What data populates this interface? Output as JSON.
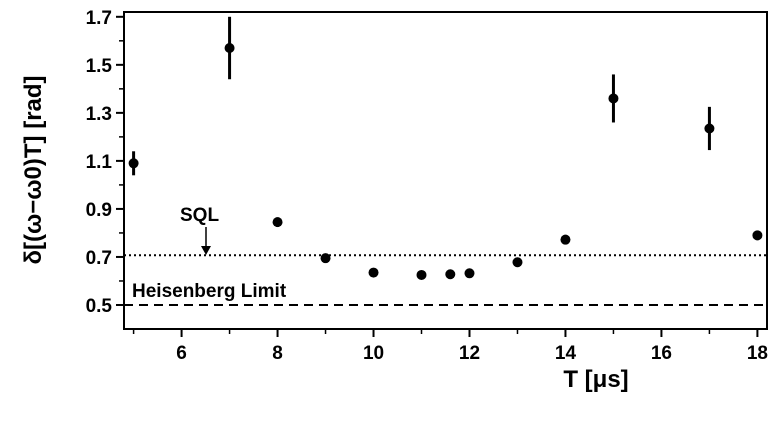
{
  "chart_data": {
    "type": "scatter",
    "xlabel": "T [μs]",
    "ylabel": "δ[(ω−ω0)T] [rad]",
    "xlim": [
      4.8,
      18.2
    ],
    "ylim": [
      0.4,
      1.72
    ],
    "xticks": [
      "6",
      "8",
      "10",
      "12",
      "14",
      "16",
      "18"
    ],
    "yticks": [
      "0.5",
      "0.7",
      "0.9",
      "1.1",
      "1.3",
      "1.5",
      "1.7"
    ],
    "grid": false,
    "series": [
      {
        "x": [
          5,
          7,
          8,
          9,
          10,
          11,
          11.6,
          12,
          13,
          14,
          15,
          17,
          18
        ],
        "y": [
          1.09,
          1.57,
          0.845,
          0.695,
          0.635,
          0.625,
          0.628,
          0.632,
          0.678,
          0.772,
          1.36,
          1.235,
          0.79
        ],
        "err": [
          0.05,
          0.13,
          0.02,
          0.012,
          0.01,
          0.01,
          0.01,
          0.01,
          0.015,
          0.02,
          0.1,
          0.09,
          0.02
        ]
      }
    ],
    "reference_lines": [
      {
        "label": "SQL",
        "y": 0.707,
        "style": "dotted"
      },
      {
        "label": "Heisenberg Limit",
        "y": 0.5,
        "style": "dashed"
      }
    ],
    "annotations": [
      {
        "text": "SQL",
        "arrow_to_x": 6.4
      }
    ]
  }
}
